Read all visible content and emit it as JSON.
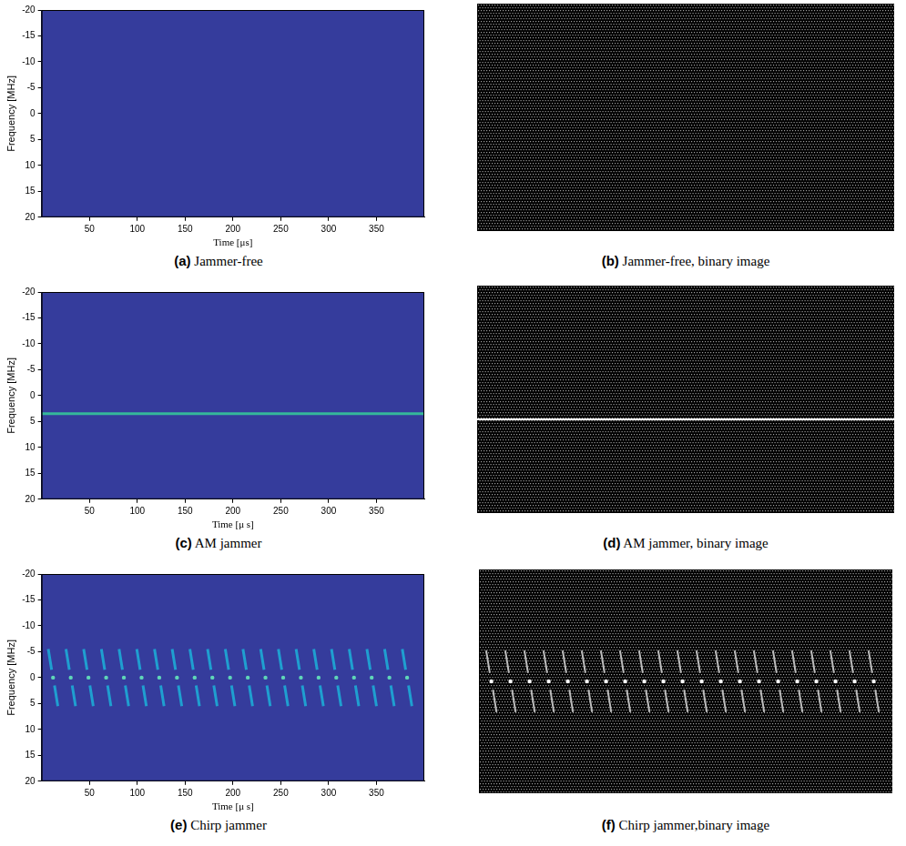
{
  "chart_data": [
    {
      "type": "spectrogram",
      "letter": "(a)",
      "caption": "Jammer-free",
      "xlabel": "Time [μs]",
      "ylabel": "Frequency [MHz]",
      "xlim": [
        0,
        400
      ],
      "ylim": [
        20,
        -20
      ],
      "xticks": [
        50,
        100,
        150,
        200,
        250,
        300,
        350
      ],
      "yticks": [
        -20,
        -15,
        -10,
        -5,
        0,
        5,
        10,
        15,
        20
      ],
      "grid": false,
      "segments": [],
      "tones": []
    },
    {
      "type": "binary",
      "letter": "(b)",
      "caption": "Jammer-free, binary image",
      "xlim": [
        0,
        400
      ],
      "ylim": [
        20,
        -20
      ],
      "tick_labels": false,
      "grid": false,
      "segments": [],
      "tones": []
    },
    {
      "type": "spectrogram",
      "letter": "(c)",
      "caption": "AM jammer",
      "xlabel": "Time [μ s]",
      "ylabel": "Frequency [MHz]",
      "xlim": [
        0,
        400
      ],
      "ylim": [
        20,
        -20
      ],
      "xticks": [
        50,
        100,
        150,
        200,
        250,
        300,
        350
      ],
      "yticks": [
        -20,
        -15,
        -10,
        -5,
        0,
        5,
        10,
        15,
        20
      ],
      "grid": false,
      "segments": [
        {
          "color": "#35b79a",
          "f_start": 3.5,
          "f_end": 3.5,
          "t_start": [
            0
          ],
          "t_end": [
            400
          ]
        }
      ],
      "tones": []
    },
    {
      "type": "binary",
      "letter": "(d)",
      "caption": "AM jammer, binary image",
      "xlim": [
        0,
        400
      ],
      "ylim": [
        20,
        -20
      ],
      "tick_labels": false,
      "grid": false,
      "segments": [
        {
          "color": "#ffffff",
          "f_start": 3.5,
          "f_end": 3.5,
          "t_start": [
            0
          ],
          "t_end": [
            400
          ]
        }
      ],
      "tones": []
    },
    {
      "type": "spectrogram",
      "letter": "(e)",
      "caption": "Chirp jammer",
      "xlabel": "Time [μ s]",
      "ylabel": "Frequency [MHz]",
      "xlim": [
        0,
        400
      ],
      "ylim": [
        20,
        -20
      ],
      "xticks": [
        50,
        100,
        150,
        200,
        250,
        300,
        350
      ],
      "yticks": [
        -20,
        -15,
        -10,
        -5,
        0,
        5,
        10,
        15,
        20
      ],
      "grid": false,
      "segments": [
        {
          "color": "#1f9fd0",
          "f_start": -5.5,
          "f_end": -1.5,
          "t_start": [
            7,
            25.5,
            44,
            62.5,
            81,
            99.5,
            118,
            136.5,
            155,
            173.5,
            192,
            210.5,
            229,
            247.5,
            266,
            284.5,
            303,
            321.5,
            340,
            358.5,
            377
          ],
          "t_end": [
            10.5,
            29,
            47.5,
            66,
            84.5,
            103,
            121.5,
            140,
            158.5,
            177,
            195.5,
            214,
            232.5,
            251,
            269.5,
            288,
            306.5,
            325,
            343.5,
            362,
            380.5
          ]
        },
        {
          "color": "#1f9fd0",
          "f_start": 1.5,
          "f_end": 5.5,
          "t_start": [
            13.5,
            32,
            50.5,
            69,
            87.5,
            106,
            124.5,
            143,
            161.5,
            180,
            198.5,
            217,
            235.5,
            254,
            272.5,
            291,
            309.5,
            328,
            346.5,
            365,
            383.5
          ],
          "t_end": [
            17,
            35.5,
            54,
            72.5,
            91,
            109.5,
            128,
            146.5,
            165,
            183.5,
            202,
            220.5,
            239,
            257.5,
            276,
            294.5,
            313,
            331.5,
            350,
            368.5,
            387
          ]
        }
      ],
      "tones": [
        {
          "color": "#5fd6b8",
          "f": 0,
          "t": [
            12,
            30.5,
            49,
            67.5,
            86,
            104.5,
            123,
            141.5,
            160,
            178.5,
            197,
            215.5,
            234,
            252.5,
            271,
            289.5,
            308,
            326.5,
            345,
            363.5,
            382
          ]
        }
      ]
    },
    {
      "type": "binary",
      "letter": "(f)",
      "caption": "Chirp jammer,binary image",
      "xlim": [
        0,
        400
      ],
      "ylim": [
        20,
        -20
      ],
      "tick_labels": false,
      "grid": false,
      "segments": [
        {
          "color": "#bdbdbd",
          "f_start": -5.5,
          "f_end": -1.5,
          "t_start": [
            7,
            25.5,
            44,
            62.5,
            81,
            99.5,
            118,
            136.5,
            155,
            173.5,
            192,
            210.5,
            229,
            247.5,
            266,
            284.5,
            303,
            321.5,
            340,
            358.5,
            377
          ],
          "t_end": [
            10.5,
            29,
            47.5,
            66,
            84.5,
            103,
            121.5,
            140,
            158.5,
            177,
            195.5,
            214,
            232.5,
            251,
            269.5,
            288,
            306.5,
            325,
            343.5,
            362,
            380.5
          ]
        },
        {
          "color": "#bdbdbd",
          "f_start": 1.5,
          "f_end": 5.5,
          "t_start": [
            13.5,
            32,
            50.5,
            69,
            87.5,
            106,
            124.5,
            143,
            161.5,
            180,
            198.5,
            217,
            235.5,
            254,
            272.5,
            291,
            309.5,
            328,
            346.5,
            365,
            383.5
          ],
          "t_end": [
            17,
            35.5,
            54,
            72.5,
            91,
            109.5,
            128,
            146.5,
            165,
            183.5,
            202,
            220.5,
            239,
            257.5,
            276,
            294.5,
            313,
            331.5,
            350,
            368.5,
            387
          ]
        }
      ],
      "tones": [
        {
          "color": "#ffffff",
          "f": 0,
          "t": [
            12,
            30.5,
            49,
            67.5,
            86,
            104.5,
            123,
            141.5,
            160,
            178.5,
            197,
            215.5,
            234,
            252.5,
            271,
            289.5,
            308,
            326.5,
            345,
            363.5,
            382
          ]
        }
      ]
    }
  ]
}
